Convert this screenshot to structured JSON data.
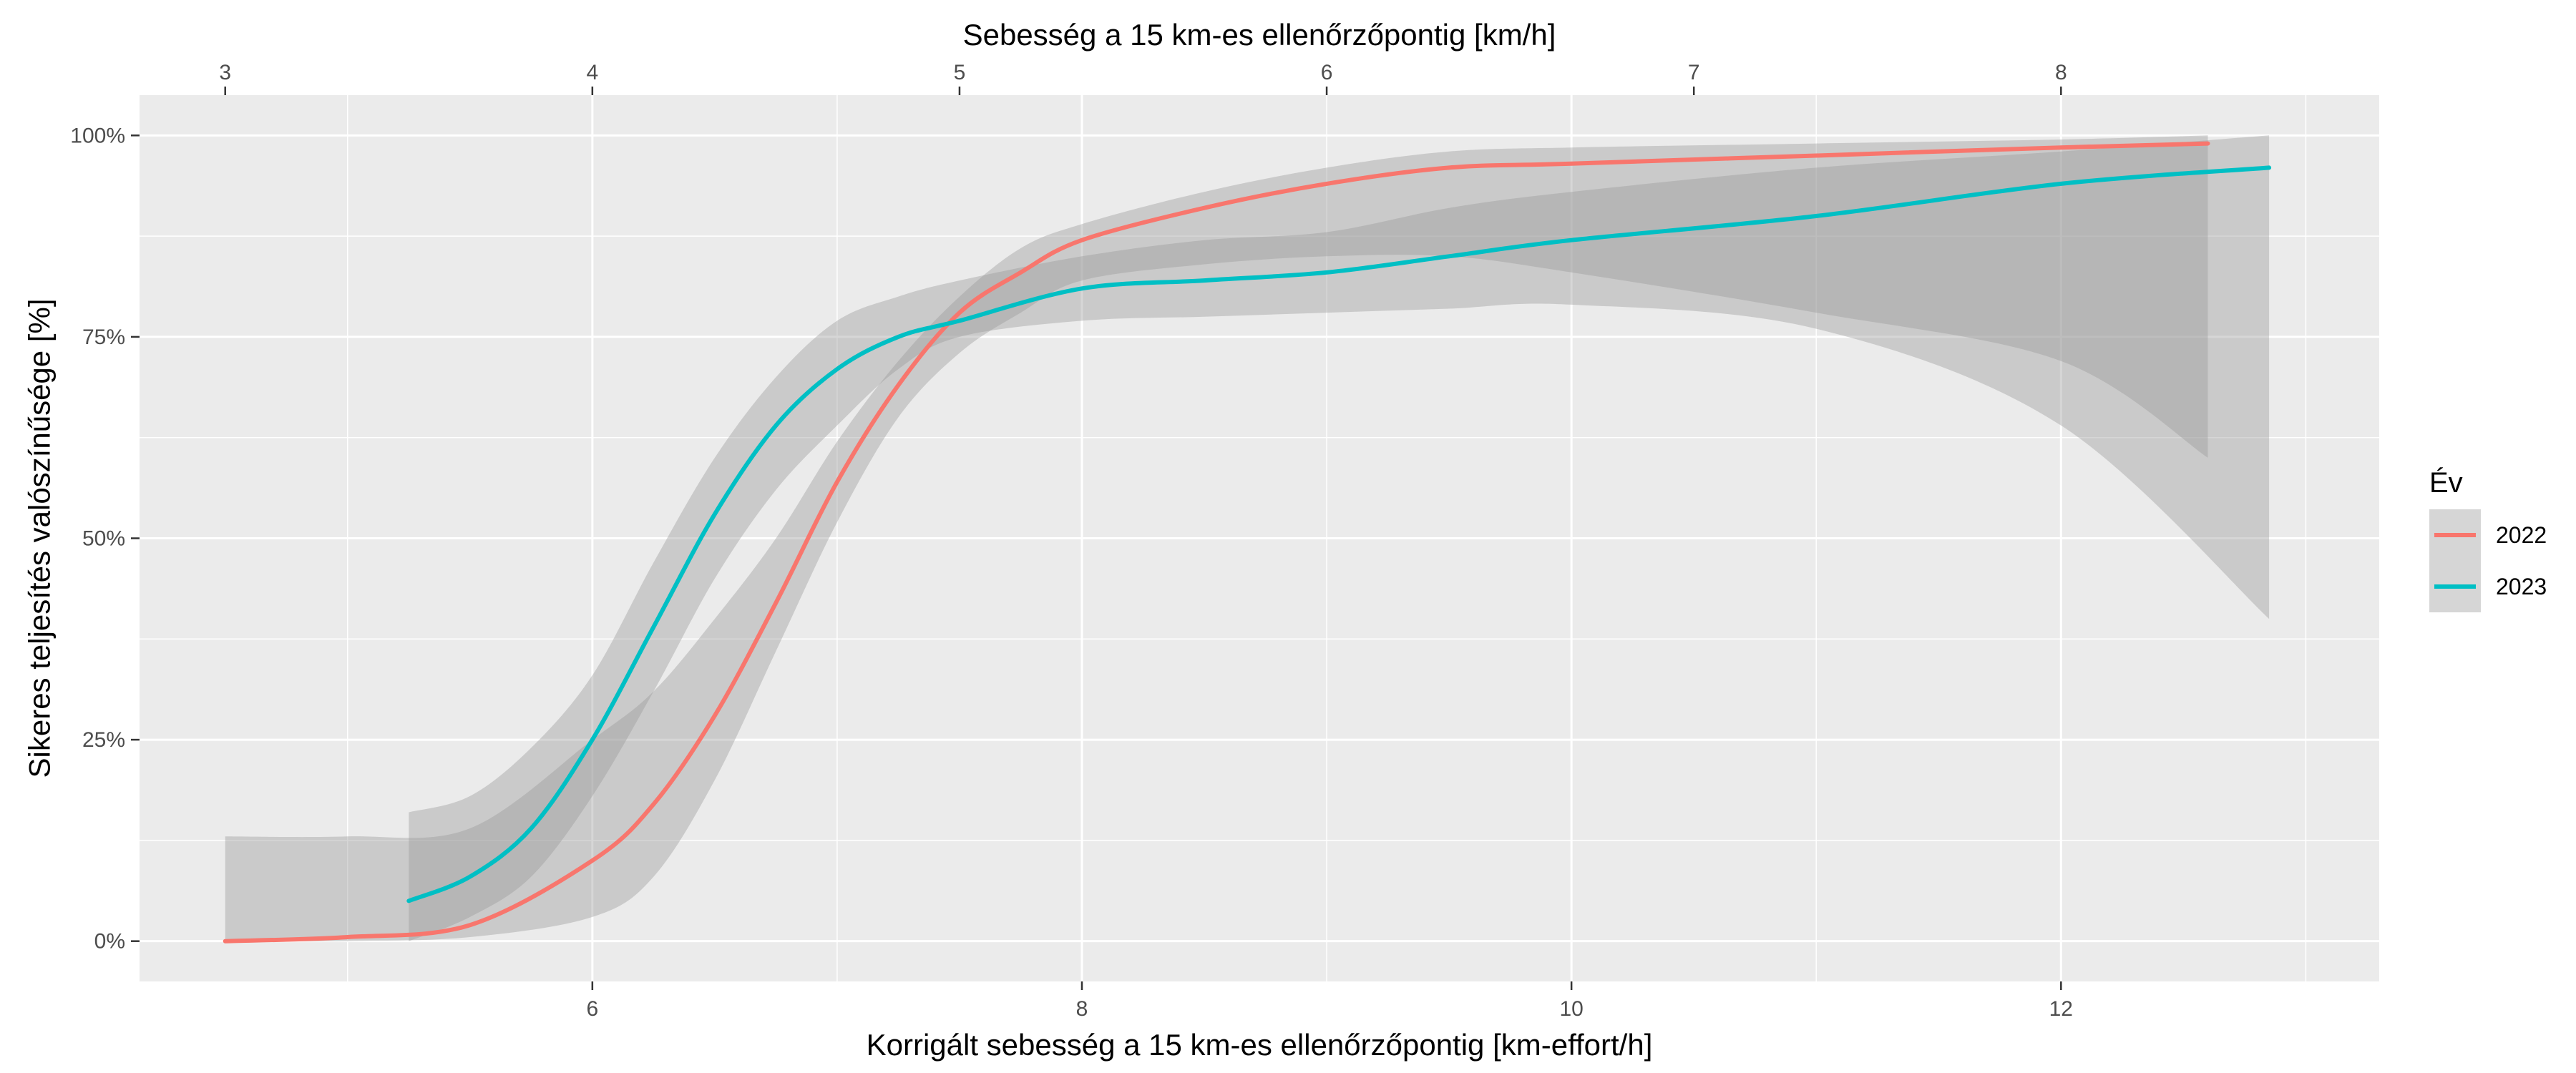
{
  "chart_data": {
    "type": "line",
    "title": "",
    "xlabel": "Korrigált sebesség a 15 km-es ellenőrzőpontig [km-effort/h]",
    "x2label": "Sebesség a 15 km-es ellenőrzőpontig [km/h]",
    "ylabel": "Sikeres teljesítés valószínűsége [%]",
    "xlim": [
      4.15,
      13.3
    ],
    "ylim": [
      -0.05,
      1.05
    ],
    "x_ticks": [
      6,
      8,
      10,
      12
    ],
    "x_tick_labels": [
      "6",
      "8",
      "10",
      "12"
    ],
    "x2_ticks": [
      3,
      4,
      5,
      6,
      7,
      8
    ],
    "x2_tick_labels": [
      "3",
      "4",
      "5",
      "6",
      "7",
      "8"
    ],
    "x2_to_x": {
      "slope": 1.5,
      "intercept": 0
    },
    "y_ticks": [
      0,
      0.25,
      0.5,
      0.75,
      1.0
    ],
    "y_tick_labels": [
      "0%",
      "25%",
      "50%",
      "75%",
      "100%"
    ],
    "grid": true,
    "legend": {
      "title": "Év",
      "position": "right"
    },
    "colors": {
      "panel": "#EBEBEB",
      "grid": "#FFFFFF",
      "ribbon": "#999999"
    },
    "series": [
      {
        "name": "2022",
        "color": "#F8766D",
        "x": [
          4.5,
          5.0,
          5.5,
          6.0,
          6.25,
          6.5,
          6.75,
          7.0,
          7.25,
          7.5,
          7.75,
          8.0,
          8.5,
          9.0,
          9.5,
          10.0,
          11.0,
          12.0,
          12.6
        ],
        "y": [
          0.0,
          0.005,
          0.02,
          0.1,
          0.17,
          0.28,
          0.42,
          0.57,
          0.69,
          0.78,
          0.83,
          0.87,
          0.91,
          0.94,
          0.96,
          0.965,
          0.975,
          0.985,
          0.99
        ],
        "lower": [
          0.0,
          0.0,
          0.005,
          0.03,
          0.08,
          0.2,
          0.36,
          0.52,
          0.65,
          0.73,
          0.78,
          0.82,
          0.84,
          0.85,
          0.85,
          0.83,
          0.78,
          0.72,
          0.6
        ],
        "upper": [
          0.13,
          0.13,
          0.14,
          0.25,
          0.31,
          0.4,
          0.5,
          0.62,
          0.72,
          0.8,
          0.86,
          0.89,
          0.93,
          0.96,
          0.98,
          0.985,
          0.99,
          0.995,
          1.0
        ]
      },
      {
        "name": "2023",
        "color": "#00BFC4",
        "x": [
          5.25,
          5.5,
          5.75,
          6.0,
          6.25,
          6.5,
          6.75,
          7.0,
          7.25,
          7.5,
          8.0,
          8.5,
          9.0,
          9.5,
          10.0,
          11.0,
          12.0,
          12.85
        ],
        "y": [
          0.05,
          0.08,
          0.14,
          0.25,
          0.39,
          0.53,
          0.64,
          0.71,
          0.75,
          0.77,
          0.81,
          0.82,
          0.83,
          0.85,
          0.87,
          0.9,
          0.94,
          0.96
        ],
        "lower": [
          0.0,
          0.03,
          0.08,
          0.18,
          0.31,
          0.45,
          0.56,
          0.64,
          0.71,
          0.75,
          0.77,
          0.775,
          0.78,
          0.785,
          0.79,
          0.76,
          0.64,
          0.4
        ],
        "upper": [
          0.16,
          0.18,
          0.24,
          0.33,
          0.47,
          0.6,
          0.7,
          0.77,
          0.8,
          0.82,
          0.85,
          0.87,
          0.88,
          0.91,
          0.93,
          0.96,
          0.98,
          1.0
        ]
      }
    ]
  }
}
